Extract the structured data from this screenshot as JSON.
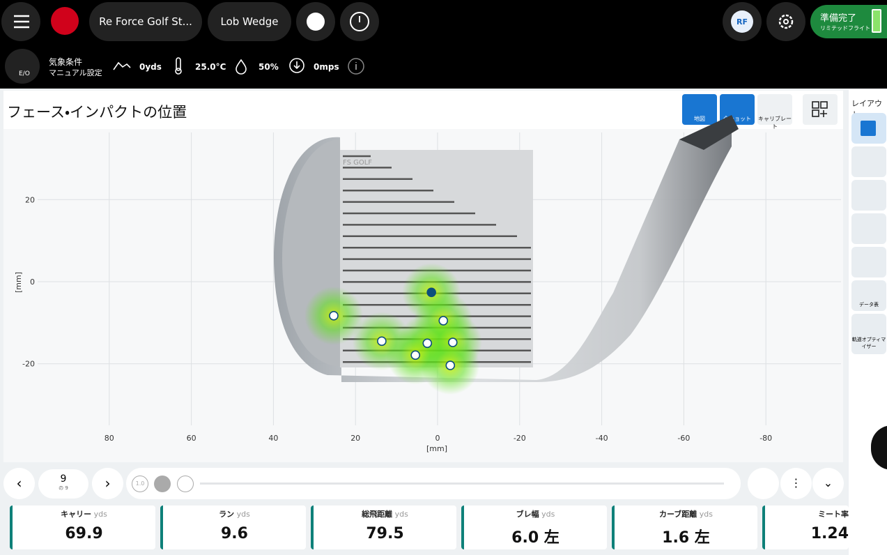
{
  "top_bar": {
    "session": "Re Force Golf St...",
    "club": "Lob Wedge",
    "user": "RF",
    "status": "準備完了",
    "status_sub": "リミテッドフライト"
  },
  "conditions": {
    "icon_label": "E/O",
    "label": "気象条件",
    "mode": "マニュアル設定",
    "elevation": "0yds",
    "temperature": "25.0°C",
    "humidity": "50%",
    "wind": "0mps"
  },
  "panel": {
    "title": "フェース・インパクトの位置",
    "buttons": [
      "地図",
      "全ショット",
      "キャリブレート"
    ],
    "club_text": "FS GOLF"
  },
  "sidebar": {
    "title": "レイアウト",
    "items": [
      "データ表",
      "軌道オプティマイザー"
    ]
  },
  "player": {
    "shot": "9",
    "of": "の 9",
    "speed": "1.0"
  },
  "metrics": [
    {
      "label": "キャリー",
      "unit": "yds",
      "value": "69.9"
    },
    {
      "label": "ラン",
      "unit": "yds",
      "value": "9.6"
    },
    {
      "label": "総飛距離",
      "unit": "yds",
      "value": "79.5"
    },
    {
      "label": "ブレ幅",
      "unit": "yds",
      "value": "6.0 左"
    },
    {
      "label": "カーブ距離",
      "unit": "yds",
      "value": "1.6 左"
    },
    {
      "label": "ミート率",
      "unit": "",
      "value": "1.24"
    }
  ],
  "chart_data": {
    "type": "scatter",
    "x_label": "[mm]",
    "y_label": "[mm]",
    "series": [
      {
        "name": "shots",
        "color": "#ffffff",
        "highlight_color": "#0d4f7c",
        "x": [
          25.3,
          1.5,
          -1.4,
          13.6,
          2.5,
          -3.7,
          5.4,
          -3.1
        ],
        "values": [
          -8.3,
          -2.6,
          -9.5,
          -14.5,
          -15.0,
          -14.8,
          -17.9,
          -20.4
        ]
      }
    ],
    "highlight_index": 1,
    "xlim": [
      100,
      -100
    ],
    "ylim": [
      35,
      -35
    ],
    "xticks": [
      80,
      60,
      40,
      20,
      0,
      -20,
      -40,
      -60,
      -80
    ],
    "yticks": [
      20,
      0,
      -20
    ],
    "grid": true
  }
}
